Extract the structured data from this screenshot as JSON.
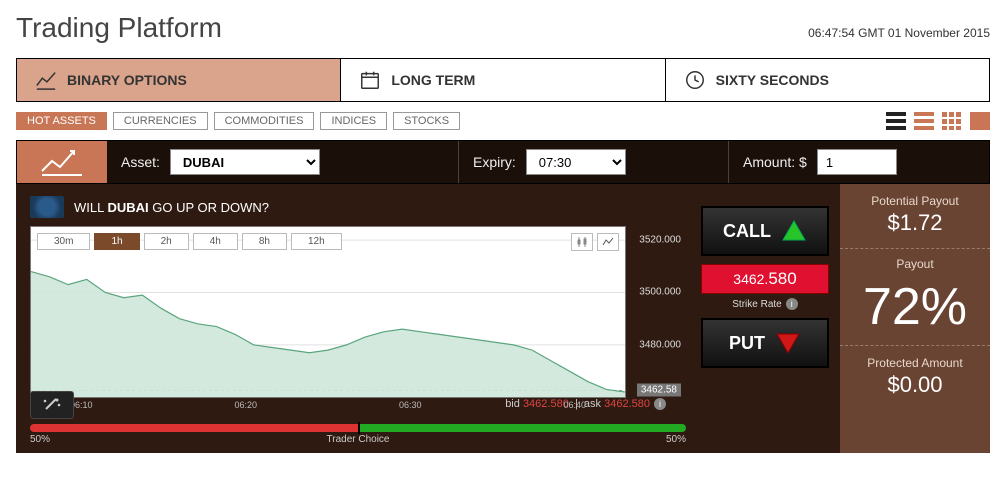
{
  "header": {
    "title": "Trading Platform",
    "timestamp": "06:47:54 GMT 01 November 2015"
  },
  "mainTabs": [
    {
      "label": "BINARY OPTIONS",
      "active": true
    },
    {
      "label": "LONG TERM",
      "active": false
    },
    {
      "label": "SIXTY SECONDS",
      "active": false
    }
  ],
  "filterPills": [
    {
      "label": "HOT ASSETS",
      "active": true
    },
    {
      "label": "CURRENCIES",
      "active": false
    },
    {
      "label": "COMMODITIES",
      "active": false
    },
    {
      "label": "INDICES",
      "active": false
    },
    {
      "label": "STOCKS",
      "active": false
    }
  ],
  "params": {
    "assetLabel": "Asset:",
    "assetValue": "DUBAI",
    "expiryLabel": "Expiry:",
    "expiryValue": "07:30",
    "amountLabel": "Amount: $",
    "amountValue": "1"
  },
  "question": {
    "prefix": "WILL ",
    "asset": "DUBAI",
    "suffix": " GO UP OR DOWN?"
  },
  "timeframes": [
    "30m",
    "1h",
    "2h",
    "4h",
    "8h",
    "12h"
  ],
  "timeframeActive": "1h",
  "chart": {
    "type": "area",
    "ylim": [
      3460,
      3525
    ],
    "yticks": [
      3520.0,
      3500.0,
      3480.0
    ],
    "ytick_labels": [
      "3520.000",
      "3500.000",
      "3480.000"
    ],
    "current_price": 3462.58,
    "current_price_label": "3462.58",
    "xlabels": [
      "06:10",
      "06:20",
      "06:30",
      "06:40"
    ],
    "series": [
      3508,
      3506,
      3503,
      3505,
      3500,
      3498,
      3499,
      3494,
      3490,
      3488,
      3487,
      3484,
      3480,
      3479,
      3478,
      3477,
      3478,
      3480,
      3483,
      3485,
      3486,
      3485,
      3484,
      3483,
      3482,
      3481,
      3480,
      3478,
      3474,
      3470,
      3466,
      3463,
      3462
    ],
    "fill_color": "#cfe7da",
    "line_color": "#5aa57d",
    "grid_color": "#e0e0e0",
    "background_color": "#ffffff"
  },
  "sentiment": {
    "leftPct": "50%",
    "rightPct": "50%",
    "label": "Trader Choice"
  },
  "bidask": {
    "bidLabel": "bid",
    "bidVal": "3462.580",
    "askLabel": "ask",
    "askVal": "3462.580"
  },
  "actions": {
    "callLabel": "CALL",
    "putLabel": "PUT",
    "strikeInt": "3462.",
    "strikeDec": "580",
    "strikeLabel": "Strike Rate"
  },
  "payout": {
    "potentialLabel": "Potential Payout",
    "potentialValue": "$1.72",
    "payoutLabel": "Payout",
    "payoutValue": "72%",
    "protectedLabel": "Protected Amount",
    "protectedValue": "$0.00"
  },
  "colors": {
    "accent": "#c87655",
    "darkbg": "#2e1a10",
    "payoutbg": "#6a4432",
    "call_green": "#28c528",
    "put_red": "#d01818",
    "strike_red": "#e01030"
  }
}
